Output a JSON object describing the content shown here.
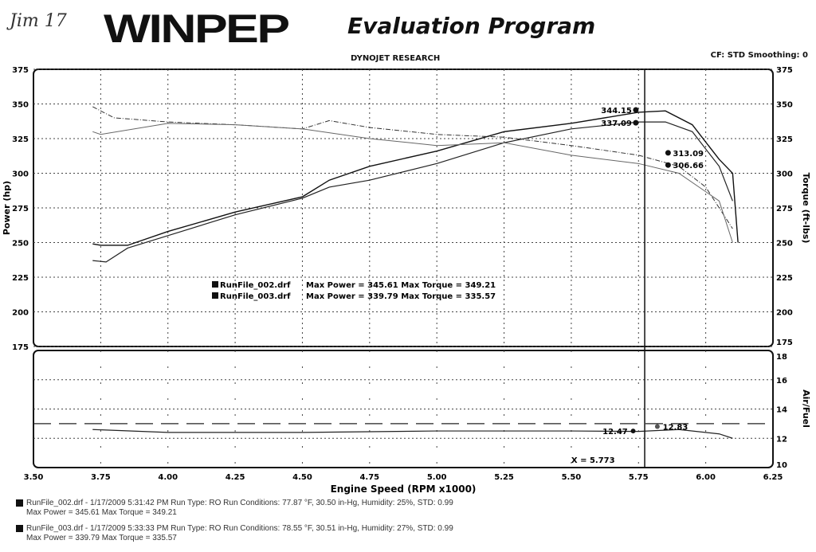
{
  "header": {
    "handwriting": "Jim 17",
    "logo": "WINPEP",
    "program": "Evaluation Program",
    "company": "DYNOJET RESEARCH",
    "settings": "CF: STD  Smoothing: 0"
  },
  "chart_data": [
    {
      "type": "line",
      "ylabel_left": "Power (hp)",
      "ylabel_right": "Torque (ft-lbs)",
      "xlim": [
        3.5,
        6.25
      ],
      "ylim": [
        175,
        375
      ],
      "yticks": [
        "175",
        "200",
        "225",
        "250",
        "275",
        "300",
        "325",
        "350",
        "375"
      ],
      "grid": true,
      "series": [
        {
          "name": "RunFile_002.drf",
          "quantity": "power",
          "x": [
            3.72,
            3.75,
            3.85,
            4.0,
            4.25,
            4.5,
            4.6,
            4.75,
            5.0,
            5.25,
            5.5,
            5.75,
            5.85,
            5.95,
            6.05,
            6.1,
            6.12
          ],
          "y": [
            249,
            248,
            248,
            258,
            272,
            283,
            295,
            305,
            316,
            330,
            336,
            344,
            345,
            335,
            310,
            300,
            250
          ]
        },
        {
          "name": "RunFile_003.drf",
          "quantity": "power",
          "x": [
            3.72,
            3.77,
            3.85,
            4.0,
            4.25,
            4.5,
            4.6,
            4.75,
            5.0,
            5.25,
            5.5,
            5.75,
            5.85,
            5.95,
            6.05,
            6.1
          ],
          "y": [
            237,
            236,
            246,
            255,
            270,
            282,
            290,
            295,
            307,
            322,
            332,
            337,
            337,
            330,
            305,
            280
          ]
        },
        {
          "name": "RunFile_002.drf",
          "quantity": "torque",
          "x": [
            3.72,
            3.8,
            4.0,
            4.25,
            4.5,
            4.6,
            4.75,
            5.0,
            5.25,
            5.5,
            5.75,
            5.9,
            6.0,
            6.1
          ],
          "y": [
            348,
            340,
            337,
            335,
            332,
            338,
            333,
            328,
            326,
            320,
            313,
            305,
            290,
            260
          ]
        },
        {
          "name": "RunFile_003.drf",
          "quantity": "torque",
          "x": [
            3.72,
            3.75,
            4.0,
            4.25,
            4.5,
            4.75,
            5.0,
            5.25,
            5.5,
            5.75,
            5.9,
            6.05,
            6.1
          ],
          "y": [
            330,
            328,
            336,
            335,
            332,
            325,
            320,
            322,
            313,
            307,
            300,
            280,
            250
          ]
        }
      ],
      "annotations": [
        "344.15",
        "337.09",
        "313.09",
        "306.66"
      ],
      "legend": [
        {
          "file": "RunFile_002.drf",
          "text": "Max Power = 345.61    Max Torque = 349.21"
        },
        {
          "file": "RunFile_003.drf",
          "text": "Max Power = 339.79    Max Torque = 335.57"
        }
      ],
      "cursor_x": 5.773
    },
    {
      "type": "line",
      "ylabel_right": "Air/Fuel",
      "xlabel": "Engine Speed (RPM x1000)",
      "xlim": [
        3.5,
        6.25
      ],
      "ylim": [
        10,
        18
      ],
      "xticks": [
        "3.50",
        "3.75",
        "4.00",
        "4.25",
        "4.50",
        "4.75",
        "5.00",
        "5.25",
        "5.50",
        "5.75",
        "6.00",
        "6.25"
      ],
      "yticks": [
        "10",
        "12",
        "14",
        "16",
        "18"
      ],
      "series": [
        {
          "name": "RunFile_002.drf",
          "x": [
            3.72,
            4.0,
            4.5,
            5.0,
            5.5,
            5.75,
            5.9,
            6.05,
            6.1
          ],
          "y": [
            12.6,
            12.4,
            12.4,
            12.5,
            12.5,
            12.47,
            12.6,
            12.3,
            12.0
          ]
        },
        {
          "name": "RunFile_003.drf",
          "x": [
            3.5,
            6.25
          ],
          "y": [
            13.0,
            13.0
          ]
        }
      ],
      "annotations": [
        "12.47",
        "12.83",
        "X = 5.773"
      ]
    }
  ],
  "footer": [
    {
      "line1": "RunFile_002.drf - 1/17/2009 5:31:42 PM  Run Type: RO  Run Conditions: 77.87 °F, 30.50 in-Hg,  Humidity: 25%, STD: 0.99",
      "line2": "Max Power = 345.61  Max Torque = 349.21"
    },
    {
      "line1": "RunFile_003.drf - 1/17/2009 5:33:33 PM  Run Type: RO  Run Conditions: 78.55 °F, 30.51 in-Hg,  Humidity: 27%, STD: 0.99",
      "line2": "Max Power = 339.79  Max Torque = 335.57"
    }
  ]
}
